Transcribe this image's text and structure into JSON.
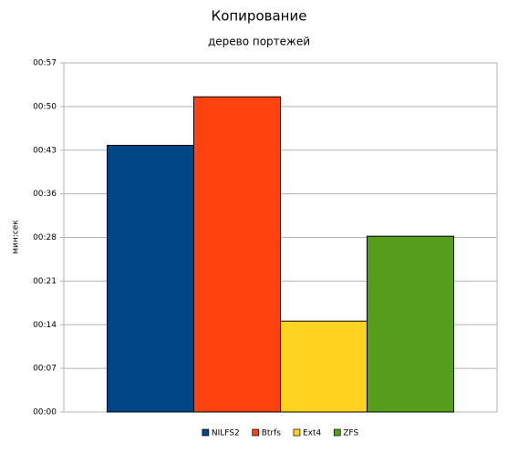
{
  "chart_data": {
    "type": "bar",
    "title": "Копирование",
    "subtitle": "дерево портежей",
    "y_label": "мин:сек",
    "categories": [
      null
    ],
    "series": [
      {
        "name": "NILFS2",
        "color": "#004586",
        "values": [
          44
        ]
      },
      {
        "name": "Btrfs",
        "color": "#ff420e",
        "values": [
          52
        ]
      },
      {
        "name": "Ext4",
        "color": "#ffd320",
        "values": [
          15
        ]
      },
      {
        "name": "ZFS",
        "color": "#579d1c",
        "values": [
          29
        ]
      }
    ],
    "ylim": [
      0,
      57.6
    ],
    "yticks": [
      {
        "value": 0,
        "label": "00:00"
      },
      {
        "value": 7.2,
        "label": "00:07"
      },
      {
        "value": 14.4,
        "label": "00:14"
      },
      {
        "value": 21.6,
        "label": "00:21"
      },
      {
        "value": 28.8,
        "label": "00:28"
      },
      {
        "value": 36,
        "label": "00:36"
      },
      {
        "value": 43.2,
        "label": "00:43"
      },
      {
        "value": 50.4,
        "label": "00:50"
      },
      {
        "value": 57.6,
        "label": "00:57"
      }
    ],
    "grid": true,
    "legend": "bottom"
  }
}
